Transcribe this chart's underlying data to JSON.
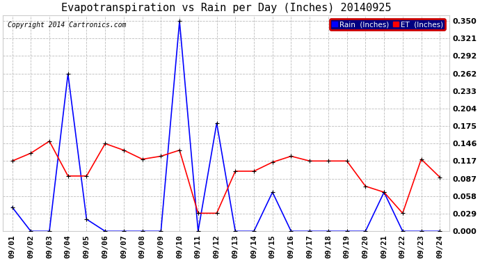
{
  "title": "Evapotranspiration vs Rain per Day (Inches) 20140925",
  "copyright": "Copyright 2014 Cartronics.com",
  "labels": [
    "09/01",
    "09/02",
    "09/03",
    "09/04",
    "09/05",
    "09/06",
    "09/07",
    "09/08",
    "09/09",
    "09/10",
    "09/11",
    "09/12",
    "09/13",
    "09/14",
    "09/15",
    "09/16",
    "09/17",
    "09/18",
    "09/19",
    "09/20",
    "09/21",
    "09/22",
    "09/23",
    "09/24"
  ],
  "rain_inches": [
    0.04,
    0.0,
    0.0,
    0.262,
    0.02,
    0.0,
    0.0,
    0.0,
    0.0,
    0.35,
    0.0,
    0.18,
    0.0,
    0.0,
    0.065,
    0.0,
    0.0,
    0.0,
    0.0,
    0.0,
    0.065,
    0.0,
    0.0,
    0.0
  ],
  "et_inches": [
    0.117,
    0.13,
    0.15,
    0.092,
    0.092,
    0.146,
    0.135,
    0.12,
    0.125,
    0.135,
    0.03,
    0.03,
    0.1,
    0.1,
    0.115,
    0.125,
    0.117,
    0.117,
    0.117,
    0.075,
    0.065,
    0.03,
    0.12,
    0.09
  ],
  "rain_color": "#0000ff",
  "et_color": "#ff0000",
  "bg_color": "#ffffff",
  "grid_color": "#bbbbbb",
  "yticks": [
    0.0,
    0.029,
    0.058,
    0.087,
    0.117,
    0.146,
    0.175,
    0.204,
    0.233,
    0.262,
    0.292,
    0.321,
    0.35
  ],
  "ylim": [
    0.0,
    0.36
  ],
  "legend_rain_label": "Rain  (Inches)",
  "legend_et_label": "ET  (Inches)",
  "title_fontsize": 11,
  "tick_fontsize": 8,
  "copyright_fontsize": 7,
  "marker": "+",
  "markersize": 5,
  "linewidth": 1.2
}
